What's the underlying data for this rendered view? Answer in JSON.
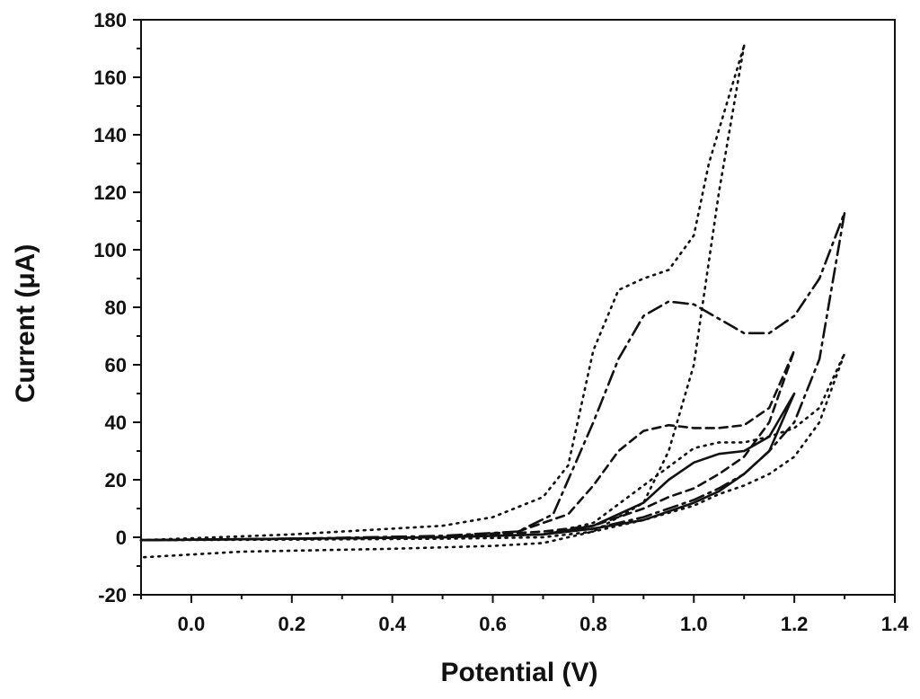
{
  "chart_data": {
    "type": "line",
    "title": "",
    "xlabel": "Potential (V)",
    "ylabel": "Current (μA)",
    "xlim": [
      -0.1,
      1.4
    ],
    "ylim": [
      -20,
      180
    ],
    "x_ticks": [
      0.0,
      0.2,
      0.4,
      0.6,
      0.8,
      1.0,
      1.2,
      1.4
    ],
    "x_tick_labels": [
      "0.0",
      "0.2",
      "0.4",
      "0.6",
      "0.8",
      "1.0",
      "1.2",
      "1.4"
    ],
    "y_ticks": [
      -20,
      0,
      20,
      40,
      60,
      80,
      100,
      120,
      140,
      160,
      180
    ],
    "y_tick_labels": [
      "-20",
      "0",
      "20",
      "40",
      "60",
      "80",
      "100",
      "120",
      "140",
      "160",
      "180"
    ],
    "grid": false,
    "legend": "none",
    "series": [
      {
        "style": "solid",
        "x": [
          -0.1,
          0.2,
          0.5,
          0.7,
          0.8,
          0.9,
          0.95,
          1.0,
          1.05,
          1.1,
          1.15,
          1.2,
          1.2,
          1.15,
          1.1,
          1.05,
          1.0,
          0.9,
          0.8,
          0.7,
          0.5,
          0.2,
          -0.1
        ],
        "y": [
          -1,
          -0.5,
          0,
          1,
          4,
          12,
          20,
          26,
          29,
          30,
          35,
          50,
          50,
          30,
          22,
          16,
          12,
          6,
          3,
          1,
          0,
          -0.5,
          -1
        ]
      },
      {
        "style": "dashed",
        "x": [
          -0.1,
          0.2,
          0.5,
          0.65,
          0.75,
          0.8,
          0.85,
          0.9,
          0.95,
          1.0,
          1.05,
          1.1,
          1.15,
          1.2,
          1.15,
          1.1,
          1.05,
          1.0,
          0.95,
          0.9,
          0.85,
          0.8,
          0.7,
          0.5,
          0.2,
          -0.1
        ],
        "y": [
          -1,
          -0.5,
          0,
          2,
          8,
          18,
          30,
          37,
          39,
          38,
          38,
          39,
          45,
          65,
          40,
          28,
          22,
          17,
          14,
          10,
          7,
          4,
          2,
          0,
          -0.5,
          -1
        ]
      },
      {
        "style": "dash-dot",
        "x": [
          -0.1,
          0.2,
          0.5,
          0.65,
          0.72,
          0.8,
          0.85,
          0.9,
          0.95,
          1.0,
          1.05,
          1.1,
          1.15,
          1.2,
          1.25,
          1.3,
          1.25,
          1.2,
          1.15,
          1.1,
          1.05,
          1.0,
          0.9,
          0.8,
          0.7,
          0.5,
          0.2,
          -0.1
        ],
        "y": [
          -1,
          -0.5,
          0.5,
          2,
          8,
          40,
          62,
          77,
          82,
          81,
          76,
          71,
          71,
          77,
          90,
          113,
          62,
          40,
          30,
          22,
          17,
          13,
          7,
          3,
          1,
          0,
          -0.5,
          -1
        ]
      },
      {
        "style": "dotted",
        "x": [
          -0.1,
          0.2,
          0.5,
          0.6,
          0.7,
          0.75,
          0.8,
          0.85,
          0.9,
          0.95,
          1.0,
          1.03,
          1.1
        ],
        "y": [
          -1,
          1,
          4,
          7,
          14,
          25,
          65,
          86,
          90,
          93,
          105,
          130,
          171
        ]
      },
      {
        "style": "dotted",
        "x": [
          1.1,
          1.05,
          1.0,
          0.95,
          0.9,
          0.8,
          0.7,
          0.6,
          0.4,
          0.1,
          -0.1
        ],
        "y": [
          171,
          120,
          60,
          30,
          12,
          2,
          -2,
          -3,
          -4,
          -5,
          -7
        ]
      },
      {
        "style": "dotted",
        "x": [
          -0.1,
          0.2,
          0.5,
          0.7,
          0.8,
          0.9,
          1.0,
          1.05,
          1.1,
          1.15,
          1.2,
          1.25,
          1.3,
          1.25,
          1.2,
          1.15,
          1.1,
          1.05,
          1.0,
          0.9,
          0.8,
          0.7,
          0.5,
          0.2,
          -0.1
        ],
        "y": [
          -1,
          -0.5,
          0,
          1,
          5,
          18,
          31,
          33,
          33,
          35,
          38,
          45,
          64,
          40,
          28,
          22,
          18,
          15,
          11,
          6,
          2,
          0,
          -0.5,
          -0.8,
          -1
        ]
      }
    ]
  }
}
